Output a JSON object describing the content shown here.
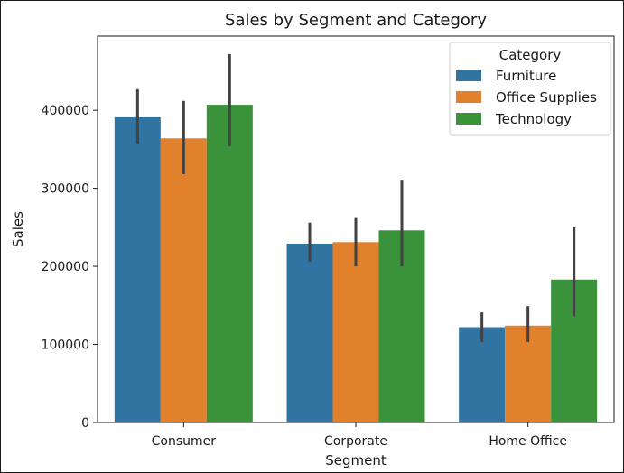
{
  "chart_data": {
    "type": "bar",
    "title": "Sales by Segment and Category",
    "xlabel": "Segment",
    "ylabel": "Sales",
    "categories": [
      "Consumer",
      "Corporate",
      "Home Office"
    ],
    "series": [
      {
        "name": "Furniture",
        "color": "#3274a1",
        "values": [
          391000,
          229000,
          122000
        ],
        "error_low": [
          357000,
          206000,
          103000
        ],
        "error_high": [
          427000,
          256000,
          141000
        ]
      },
      {
        "name": "Office Supplies",
        "color": "#e1812c",
        "values": [
          364000,
          231000,
          124000
        ],
        "error_low": [
          318000,
          200000,
          103000
        ],
        "error_high": [
          412000,
          263000,
          149000
        ]
      },
      {
        "name": "Technology",
        "color": "#3a923a",
        "values": [
          407000,
          246000,
          183000
        ],
        "error_low": [
          354000,
          200000,
          136000
        ],
        "error_high": [
          472000,
          311000,
          250000
        ]
      }
    ],
    "yticks": [
      0,
      100000,
      200000,
      300000,
      400000
    ],
    "ytick_labels": [
      "0",
      "100000",
      "200000",
      "300000",
      "400000"
    ],
    "ylim": [
      0,
      495000
    ],
    "grid": false,
    "legend": {
      "title": "Category",
      "placement": "top-right"
    }
  }
}
